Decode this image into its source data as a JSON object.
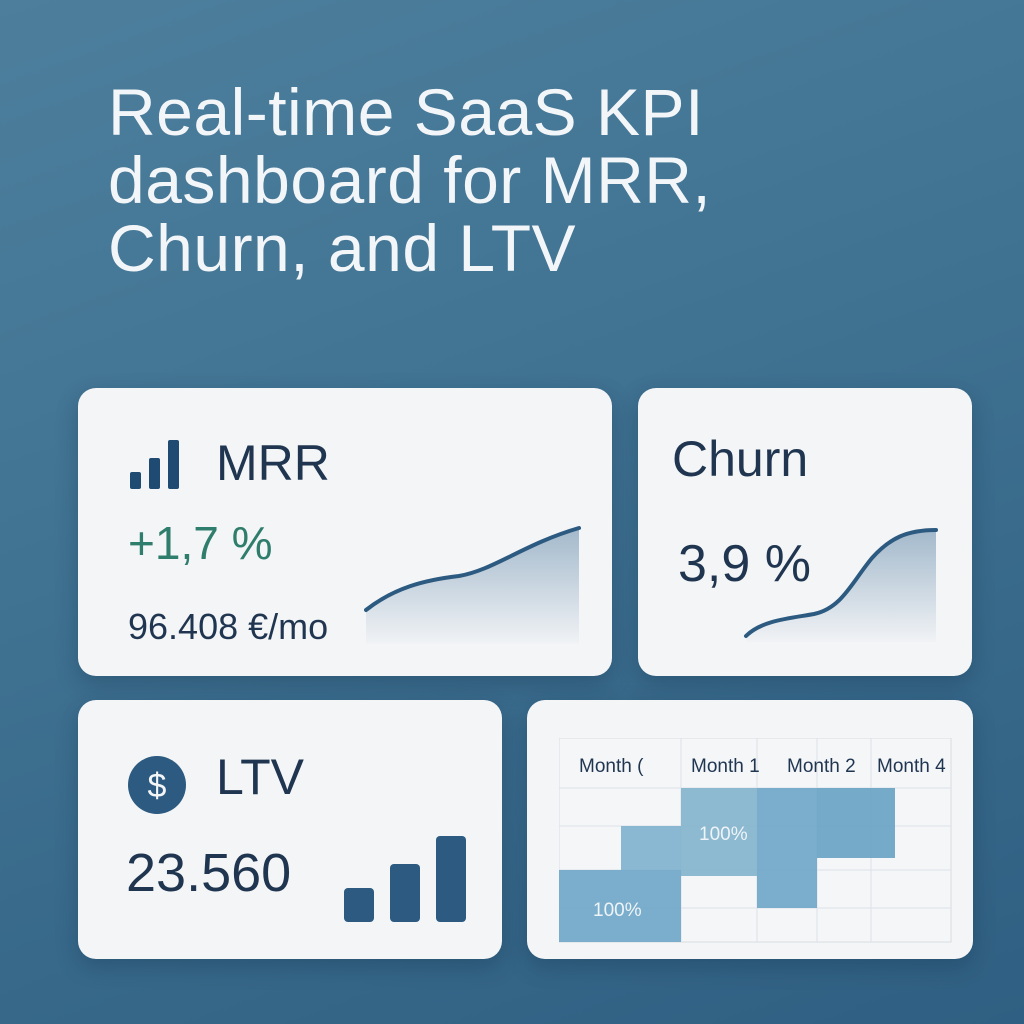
{
  "headline": {
    "line1": "Real-time SaaS KPI",
    "line2": "dashboard for MRR,",
    "line3": "Churn, and LTV"
  },
  "mrr": {
    "title": "MRR",
    "change": "+1,7 %",
    "value": "96.408 €/mo",
    "icon": "bar-chart-icon",
    "accent": "#2f7d6c"
  },
  "churn": {
    "title": "Churn",
    "value": "3,9 %"
  },
  "ltv": {
    "title": "LTV",
    "value": "23.560",
    "icon": "dollar-circle-icon"
  },
  "cohort": {
    "headers": [
      "Month (",
      "Month 1",
      "Month 2",
      "Month 4"
    ],
    "cells": [
      "100%",
      "100%"
    ]
  },
  "colors": {
    "background": "#3f7191",
    "card": "#f4f5f7",
    "text_dark": "#1f3550",
    "positive": "#2f7d6c",
    "line": "#2c5a80",
    "cohort_fill": "#6ea6c6"
  }
}
